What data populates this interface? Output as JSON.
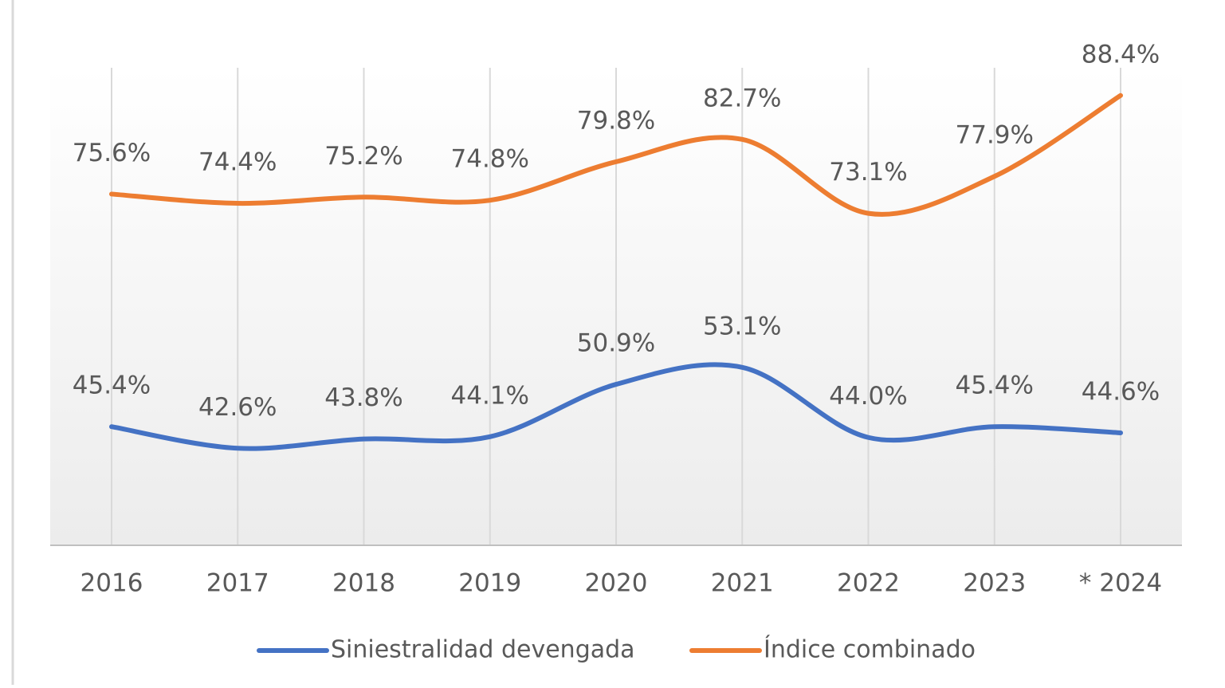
{
  "chart_data": {
    "type": "line",
    "categories": [
      "2016",
      "2017",
      "2018",
      "2019",
      "2020",
      "2021",
      "2022",
      "2023",
      "* 2024"
    ],
    "series": [
      {
        "name": "Siniestralidad devengada",
        "color": "#4472c4",
        "values": [
          45.4,
          42.6,
          43.8,
          44.1,
          50.9,
          53.1,
          44.0,
          45.4,
          44.6
        ],
        "value_labels": [
          "45.4%",
          "42.6%",
          "43.8%",
          "44.1%",
          "50.9%",
          "53.1%",
          "44.0%",
          "45.4%",
          "44.6%"
        ]
      },
      {
        "name": "Índice combinado",
        "color": "#ed7d31",
        "values": [
          75.6,
          74.4,
          75.2,
          74.8,
          79.8,
          82.7,
          73.1,
          77.9,
          88.4
        ],
        "value_labels": [
          "75.6%",
          "74.4%",
          "75.2%",
          "74.8%",
          "79.8%",
          "82.7%",
          "73.1%",
          "77.9%",
          "88.4%"
        ]
      }
    ],
    "ylim": [
      30,
      92
    ],
    "xgrid": true,
    "smooth": true,
    "legend": "bottom"
  }
}
